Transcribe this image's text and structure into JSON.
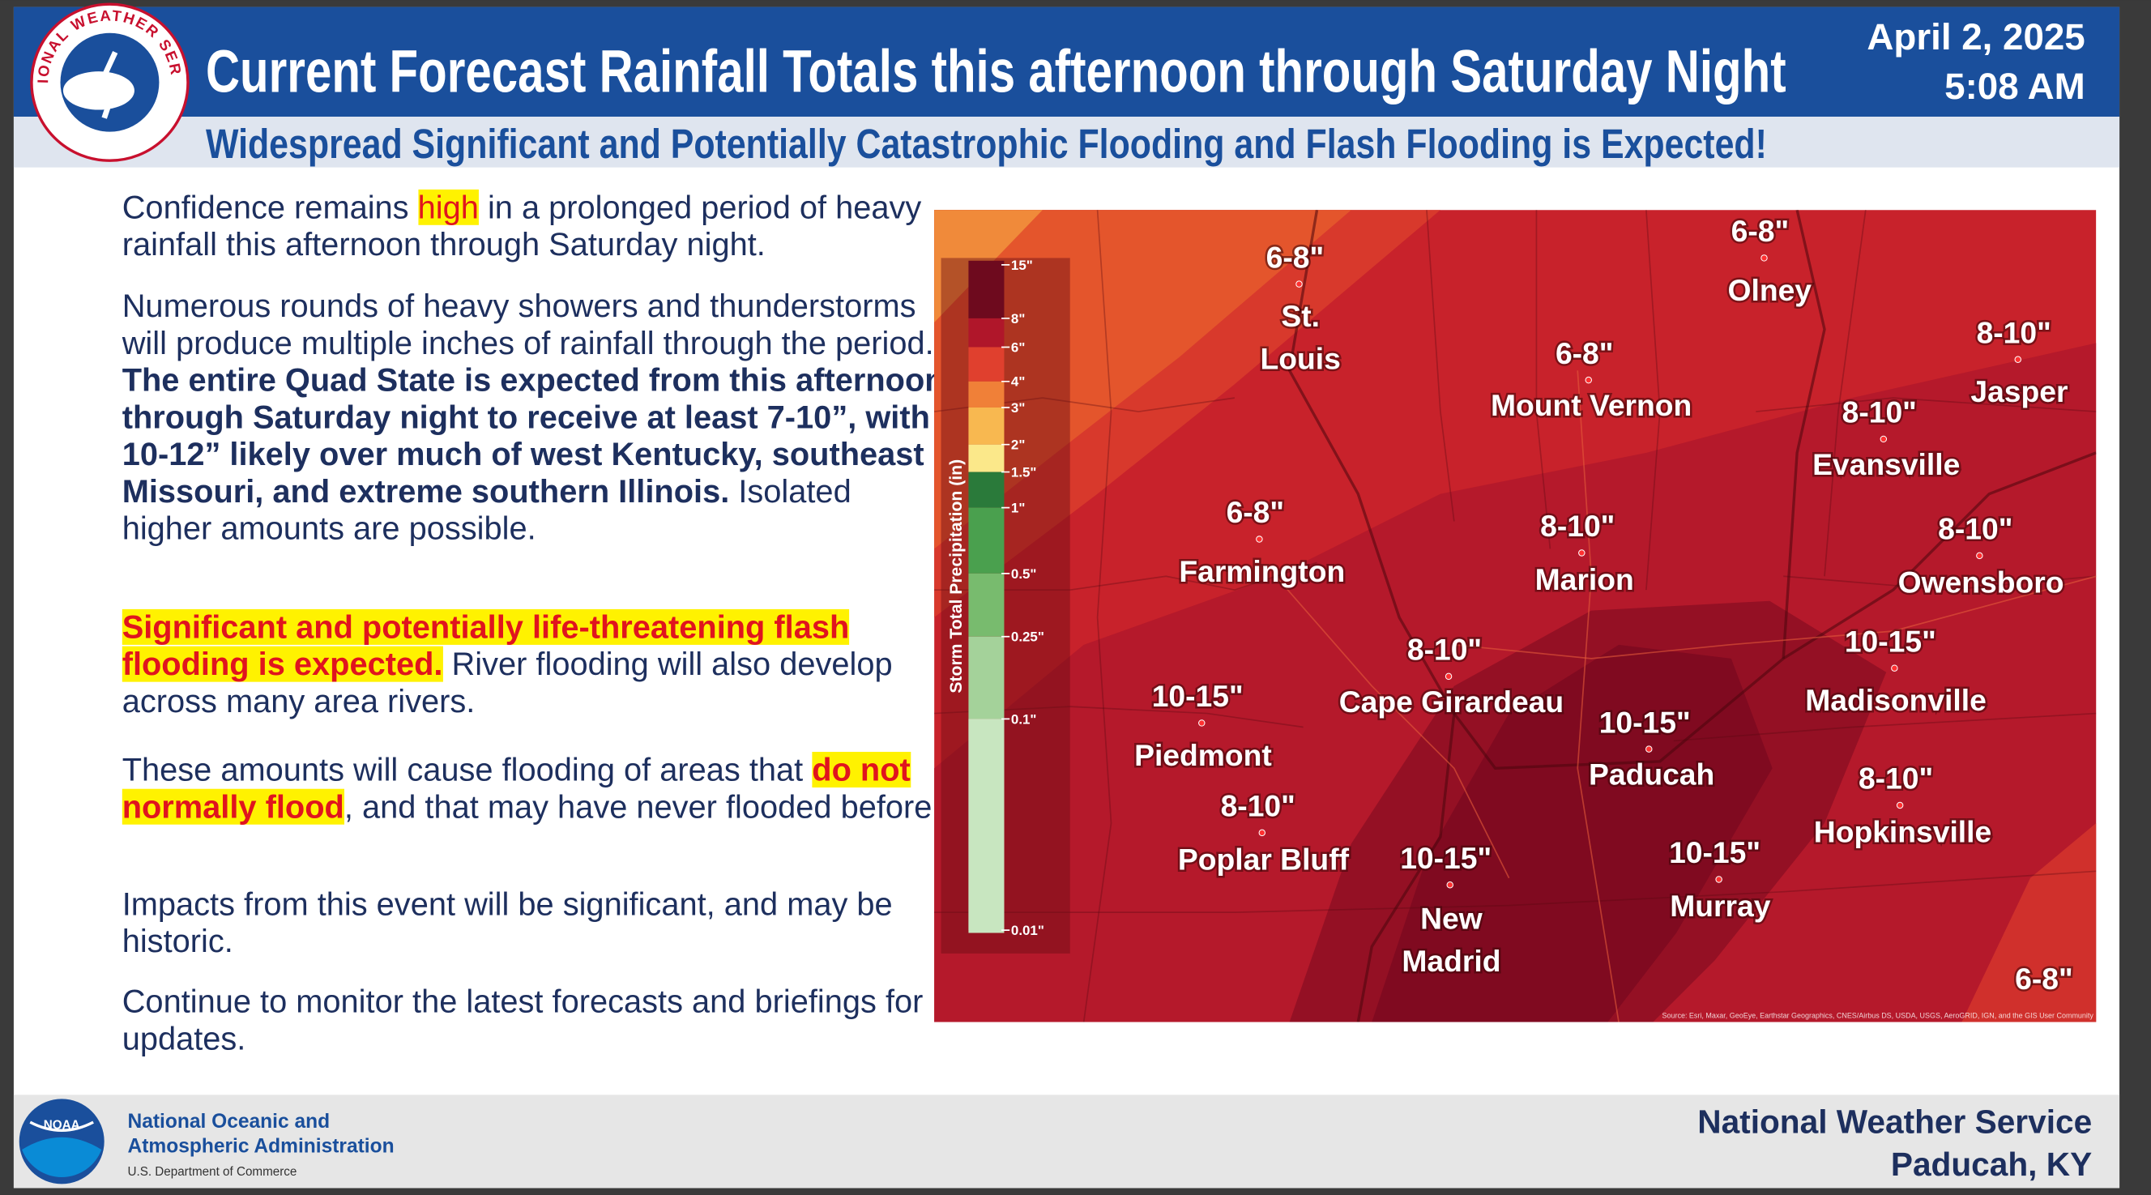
{
  "header": {
    "logo_text": "NATIONAL WEATHER SERVICE",
    "title": "Current Forecast Rainfall Totals this afternoon through Saturday Night",
    "date": "April 2, 2025",
    "time": "5:08 AM",
    "subtitle": "Widespread Significant and Potentially Catastrophic Flooding and Flash Flooding is Expected!"
  },
  "bullets": [
    {
      "segments": [
        {
          "text": "Confidence remains ",
          "style": "plain"
        },
        {
          "text": "high",
          "style": "highlight"
        },
        {
          "text": " in a prolonged period of heavy rainfall this afternoon through Saturday night.",
          "style": "plain"
        }
      ]
    },
    {
      "segments": [
        {
          "text": "Numerous rounds of heavy showers and thunderstorms will produce multiple inches of rainfall through the period. ",
          "style": "plain"
        },
        {
          "text": "The entire Quad State is expected from this afternoon through Saturday night to receive at least 7-10”, with 10-12” likely over much of west Kentucky, southeast Missouri, and extreme southern Illinois.",
          "style": "bold"
        },
        {
          "text": "  Isolated higher amounts are possible.",
          "style": "plain"
        }
      ]
    },
    {
      "segments": [
        {
          "text": "Significant and potentially life-threatening flash flooding is expected.",
          "style": "bold-highlight"
        },
        {
          "text": " River flooding will also develop across many area rivers.",
          "style": "plain"
        }
      ]
    },
    {
      "segments": [
        {
          "text": "These amounts will cause flooding of areas that ",
          "style": "plain"
        },
        {
          "text": "do not normally flood",
          "style": "bold-highlight"
        },
        {
          "text": ", and that may have never flooded before.",
          "style": "plain"
        }
      ]
    },
    {
      "segments": [
        {
          "text": "Impacts from this event will be significant, and may be historic.",
          "style": "plain"
        }
      ]
    },
    {
      "segments": [
        {
          "text": "Continue to monitor the latest forecasts and briefings for updates.",
          "style": "plain"
        }
      ]
    }
  ],
  "map": {
    "legend": {
      "title": "Storm Total Precipitation (in)",
      "labels": [
        "15\"",
        "8\"",
        "6\"",
        "4\"",
        "3\"",
        "2\"",
        "1.5\"",
        "1\"",
        "0.5\"",
        "0.25\"",
        "0.1\"",
        "0.01\""
      ],
      "colors": [
        "#6e0a1e",
        "#b0162a",
        "#e0402e",
        "#f08038",
        "#f8b850",
        "#fbe88a",
        "#2a7a3a",
        "#4aa04e",
        "#78bb6e",
        "#a4d29a",
        "#c8e6c0"
      ]
    },
    "labels": [
      {
        "amount": "6-8\"",
        "city": [
          "St.",
          "Louis"
        ]
      },
      {
        "amount": "6-8\"",
        "city": [
          "Olney"
        ]
      },
      {
        "amount": "6-8\"",
        "city": [
          "Mount Vernon"
        ]
      },
      {
        "amount": "8-10\"",
        "city": [
          "Jasper"
        ]
      },
      {
        "amount": "8-10\"",
        "city": [
          "Evansville"
        ]
      },
      {
        "amount": "6-8\"",
        "city": [
          "Farmington"
        ]
      },
      {
        "amount": "8-10\"",
        "city": [
          "Marion"
        ]
      },
      {
        "amount": "8-10\"",
        "city": [
          "Owensboro"
        ]
      },
      {
        "amount": "8-10\"",
        "city": [
          "Cape Girardeau"
        ]
      },
      {
        "amount": "10-15\"",
        "city": [
          "Madisonville"
        ]
      },
      {
        "amount": "10-15\"",
        "city": [
          "Piedmont"
        ]
      },
      {
        "amount": "10-15\"",
        "city": [
          "Paducah"
        ]
      },
      {
        "amount": "8-10\"",
        "city": [
          "Hopkinsville"
        ]
      },
      {
        "amount": "8-10\"",
        "city": [
          "Poplar Bluff"
        ]
      },
      {
        "amount": "10-15\"",
        "city": [
          "New",
          "Madrid"
        ]
      },
      {
        "amount": "10-15\"",
        "city": [
          "Murray"
        ]
      },
      {
        "amount": "6-8\"",
        "city": []
      }
    ],
    "source": "Source: Esri, Maxar, GeoEye, Earthstar Geographics, CNES/Airbus DS, USDA, USGS, AeroGRID, IGN, and the GIS User Community"
  },
  "footer": {
    "noaa_logo": "NOAA",
    "agency_lines": [
      "National Oceanic and",
      "Atmospheric Administration"
    ],
    "department": "U.S. Department of Commerce",
    "office_lines": [
      "National Weather Service",
      "Paducah, KY"
    ]
  }
}
